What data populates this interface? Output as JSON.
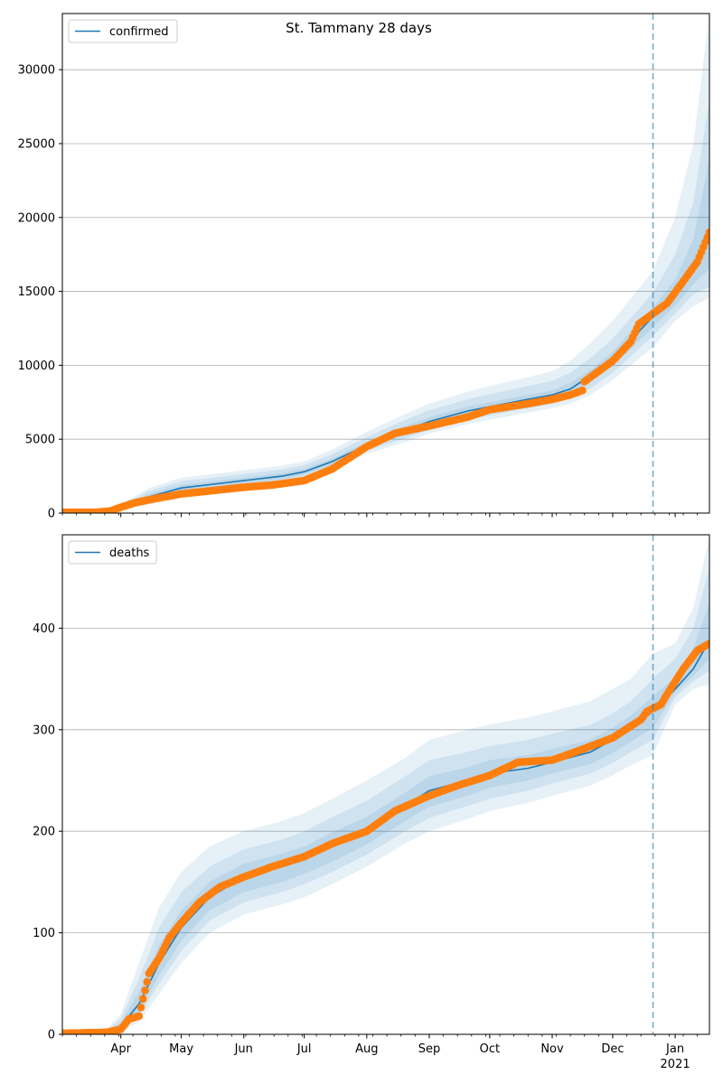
{
  "title": "St. Tammany 28 days",
  "colors": {
    "model_line": "#1f77b4",
    "observed": "#ff7f0e",
    "band": "#1f77b4",
    "grid": "#b0b0b0",
    "forecast_marker": "#1f77b4"
  },
  "x_axis": {
    "month_labels": [
      "Apr",
      "May",
      "Jun",
      "Jul",
      "Aug",
      "Sep",
      "Oct",
      "Nov",
      "Dec",
      "Jan"
    ],
    "year_label": "2021",
    "xlim": [
      "2020-03-03",
      "2021-01-18"
    ],
    "month_starts": [
      "2020-04-01",
      "2020-05-01",
      "2020-06-01",
      "2020-07-01",
      "2020-08-01",
      "2020-09-01",
      "2020-10-01",
      "2020-11-01",
      "2020-12-01",
      "2021-01-01"
    ],
    "forecast_start": "2020-12-21"
  },
  "chart_data": [
    {
      "type": "line",
      "legend": "confirmed",
      "legend_position": "top-left",
      "grid": "horizontal",
      "ylim": [
        0,
        33800
      ],
      "yticks": [
        0,
        5000,
        10000,
        15000,
        20000,
        25000,
        30000
      ],
      "x": [
        "2020-03-03",
        "2020-03-27",
        "2020-04-01",
        "2020-04-15",
        "2020-05-01",
        "2020-06-01",
        "2020-06-20",
        "2020-07-01",
        "2020-07-15",
        "2020-08-01",
        "2020-08-20",
        "2020-09-01",
        "2020-09-20",
        "2020-10-01",
        "2020-10-20",
        "2020-11-01",
        "2020-11-10",
        "2020-11-20",
        "2020-12-01",
        "2020-12-10",
        "2020-12-21",
        "2021-01-01",
        "2021-01-10",
        "2021-01-18"
      ],
      "series": [
        {
          "name": "confirmed",
          "values": [
            0,
            50,
            350,
            1100,
            1700,
            2200,
            2500,
            2800,
            3500,
            4600,
            5600,
            6200,
            6900,
            7200,
            7700,
            8000,
            8400,
            9300,
            10400,
            11700,
            13300,
            14600,
            16500,
            18700
          ]
        }
      ],
      "bands": [
        {
          "lower": [
            0,
            20,
            200,
            600,
            1100,
            1700,
            2000,
            2300,
            3000,
            4000,
            4800,
            5400,
            6000,
            6300,
            6800,
            7100,
            7400,
            8000,
            9000,
            10000,
            11200,
            13000,
            14000,
            14600
          ],
          "upper": [
            0,
            120,
            600,
            1700,
            2400,
            2900,
            3200,
            3500,
            4300,
            5500,
            6700,
            7400,
            8200,
            8600,
            9200,
            9600,
            10300,
            11500,
            13000,
            14500,
            16400,
            20000,
            25000,
            33800
          ]
        },
        {
          "lower": [
            0,
            30,
            250,
            750,
            1300,
            1850,
            2150,
            2450,
            3150,
            4200,
            5050,
            5650,
            6300,
            6600,
            7100,
            7400,
            7750,
            8450,
            9500,
            10600,
            12000,
            13500,
            14800,
            15300
          ],
          "upper": [
            0,
            90,
            500,
            1500,
            2150,
            2650,
            2950,
            3250,
            4000,
            5150,
            6300,
            6950,
            7700,
            8050,
            8600,
            8950,
            9500,
            10500,
            11800,
            13200,
            14900,
            17500,
            21000,
            28000
          ]
        },
        {
          "lower": [
            0,
            40,
            300,
            900,
            1500,
            2000,
            2300,
            2600,
            3300,
            4400,
            5300,
            5900,
            6600,
            6900,
            7400,
            7700,
            8100,
            8900,
            10000,
            11100,
            12600,
            14000,
            15500,
            16500
          ],
          "upper": [
            0,
            70,
            420,
            1300,
            1900,
            2400,
            2700,
            3000,
            3700,
            4800,
            5900,
            6500,
            7200,
            7500,
            8000,
            8300,
            8800,
            9700,
            10900,
            12300,
            13900,
            15800,
            18500,
            24000
          ]
        }
      ],
      "observed": {
        "x": [
          "2020-03-03",
          "2020-03-20",
          "2020-03-27",
          "2020-04-01",
          "2020-04-08",
          "2020-04-15",
          "2020-05-01",
          "2020-05-15",
          "2020-06-01",
          "2020-06-15",
          "2020-07-01",
          "2020-07-15",
          "2020-08-01",
          "2020-08-15",
          "2020-09-01",
          "2020-09-20",
          "2020-10-01",
          "2020-10-20",
          "2020-11-01",
          "2020-11-10",
          "2020-11-16",
          "2020-11-17",
          "2020-12-01",
          "2020-12-10",
          "2020-12-14",
          "2020-12-21",
          "2020-12-28",
          "2021-01-04",
          "2021-01-12",
          "2021-01-18"
        ],
        "values": [
          50,
          60,
          150,
          400,
          700,
          900,
          1300,
          1500,
          1750,
          1900,
          2200,
          3000,
          4500,
          5400,
          5900,
          6500,
          7000,
          7400,
          7700,
          8000,
          8300,
          8900,
          10300,
          11600,
          12800,
          13500,
          14200,
          15500,
          17000,
          19000
        ]
      }
    },
    {
      "type": "line",
      "legend": "deaths",
      "legend_position": "top-left",
      "grid": "horizontal",
      "ylim": [
        0,
        492
      ],
      "yticks": [
        0,
        100,
        200,
        300,
        400
      ],
      "x": [
        "2020-03-03",
        "2020-03-25",
        "2020-04-01",
        "2020-04-10",
        "2020-04-20",
        "2020-05-01",
        "2020-05-15",
        "2020-06-01",
        "2020-06-20",
        "2020-07-01",
        "2020-07-15",
        "2020-08-01",
        "2020-08-20",
        "2020-09-01",
        "2020-09-20",
        "2020-10-01",
        "2020-10-20",
        "2020-11-01",
        "2020-11-20",
        "2020-12-01",
        "2020-12-10",
        "2020-12-21",
        "2021-01-01",
        "2021-01-10",
        "2021-01-18"
      ],
      "series": [
        {
          "name": "deaths",
          "values": [
            0,
            2,
            8,
            30,
            70,
            105,
            135,
            155,
            165,
            172,
            185,
            200,
            225,
            240,
            250,
            257,
            262,
            268,
            278,
            290,
            302,
            318,
            340,
            360,
            388
          ]
        }
      ],
      "bands": [
        {
          "lower": [
            0,
            0,
            2,
            12,
            40,
            70,
            100,
            118,
            128,
            135,
            148,
            165,
            188,
            200,
            212,
            220,
            228,
            235,
            245,
            255,
            265,
            275,
            325,
            340,
            345
          ],
          "upper": [
            0,
            5,
            20,
            70,
            125,
            160,
            185,
            200,
            210,
            218,
            232,
            250,
            272,
            290,
            300,
            305,
            312,
            318,
            328,
            340,
            350,
            375,
            385,
            420,
            490
          ]
        },
        {
          "lower": [
            0,
            1,
            4,
            18,
            50,
            82,
            112,
            130,
            140,
            148,
            160,
            177,
            200,
            213,
            225,
            232,
            240,
            247,
            257,
            267,
            278,
            290,
            332,
            348,
            358
          ],
          "upper": [
            0,
            4,
            15,
            55,
            105,
            140,
            165,
            182,
            192,
            200,
            214,
            230,
            254,
            270,
            278,
            284,
            290,
            296,
            305,
            316,
            328,
            350,
            370,
            400,
            460
          ]
        },
        {
          "lower": [
            0,
            1,
            6,
            22,
            58,
            92,
            122,
            140,
            150,
            158,
            170,
            187,
            210,
            224,
            235,
            243,
            250,
            257,
            266,
            277,
            288,
            302,
            337,
            353,
            370
          ],
          "upper": [
            0,
            3,
            11,
            42,
            88,
            122,
            150,
            168,
            178,
            185,
            199,
            214,
            238,
            254,
            263,
            270,
            275,
            281,
            290,
            302,
            314,
            333,
            352,
            380,
            425
          ]
        }
      ],
      "observed": {
        "x": [
          "2020-03-03",
          "2020-03-25",
          "2020-04-01",
          "2020-04-05",
          "2020-04-10",
          "2020-04-12",
          "2020-04-15",
          "2020-04-20",
          "2020-04-25",
          "2020-05-01",
          "2020-05-10",
          "2020-05-20",
          "2020-06-01",
          "2020-06-15",
          "2020-07-01",
          "2020-07-15",
          "2020-08-01",
          "2020-08-15",
          "2020-09-01",
          "2020-09-15",
          "2020-10-01",
          "2020-10-15",
          "2020-11-01",
          "2020-11-15",
          "2020-12-01",
          "2020-12-15",
          "2020-12-18",
          "2020-12-25",
          "2020-12-28",
          "2021-01-05",
          "2021-01-12",
          "2021-01-18"
        ],
        "values": [
          1,
          2,
          5,
          15,
          18,
          35,
          60,
          75,
          95,
          110,
          130,
          145,
          155,
          165,
          175,
          188,
          200,
          220,
          235,
          245,
          255,
          268,
          270,
          280,
          292,
          310,
          318,
          325,
          335,
          360,
          378,
          385
        ]
      }
    }
  ]
}
